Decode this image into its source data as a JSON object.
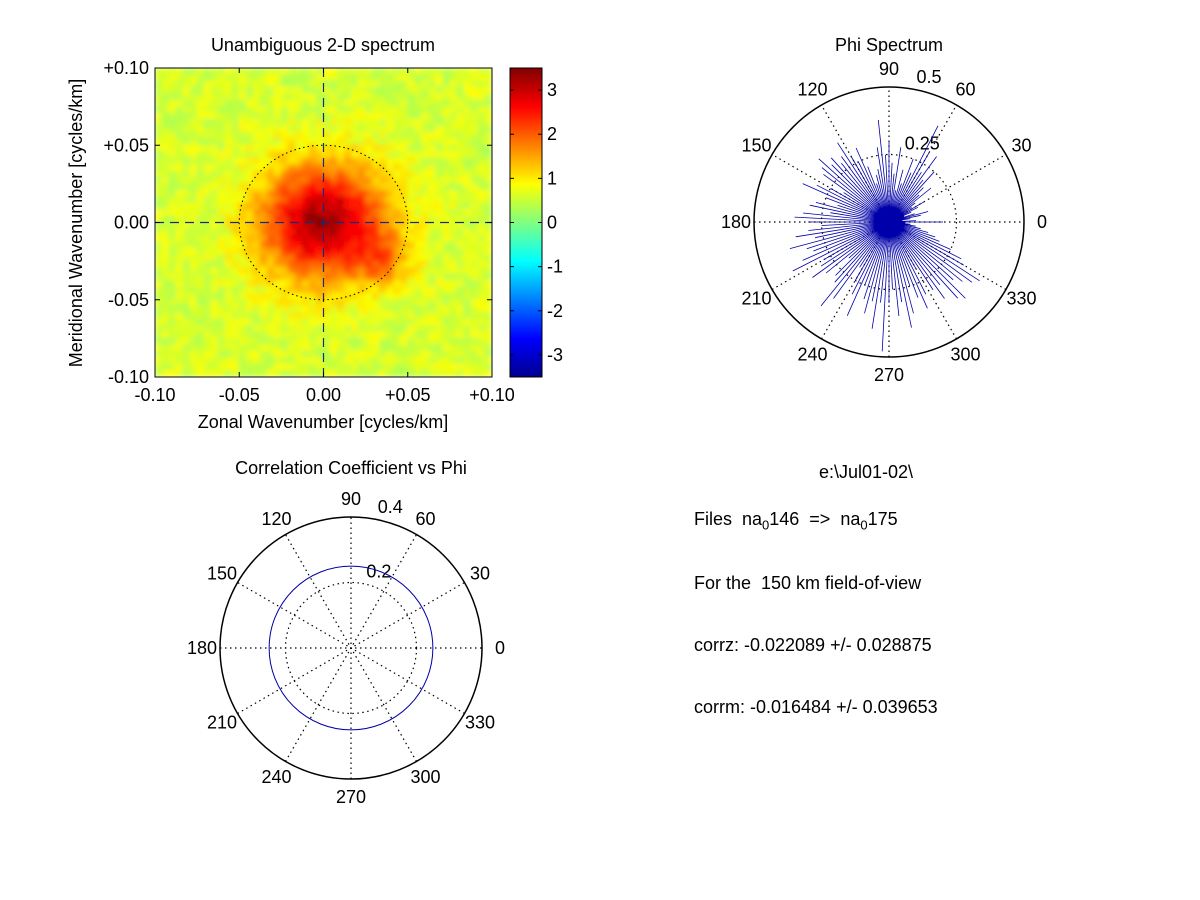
{
  "chart_data": [
    {
      "type": "heatmap",
      "title": "Unambiguous 2-D spectrum",
      "xlabel": "Zonal Wavenumber [cycles/km]",
      "ylabel": "Meridional Wavenumber [cycles/km]",
      "xlim": [
        -0.1,
        0.1
      ],
      "ylim": [
        -0.1,
        0.1
      ],
      "xticks": [
        "-0.10",
        "-0.05",
        "0.00",
        "+0.05",
        "+0.10"
      ],
      "yticks": [
        "-0.10",
        "-0.05",
        "0.00",
        "+0.05",
        "+0.10"
      ],
      "colorbar": {
        "range": [
          -3.5,
          3.5
        ],
        "ticks": [
          "3",
          "2",
          "1",
          "0",
          "-1",
          "-2",
          "-3"
        ],
        "colormap": "jet"
      },
      "peak_value": 3.3,
      "background_value": 0.6,
      "ring_radius": 0.05
    },
    {
      "type": "polar",
      "title": "Phi Spectrum",
      "angle_ticks": [
        "0",
        "30",
        "60",
        "90",
        "120",
        "150",
        "180",
        "210",
        "240",
        "270",
        "300",
        "330"
      ],
      "radial_ticks": [
        "0.25",
        "0.5"
      ],
      "rmax": 0.5,
      "series_color": "#0000aa",
      "series": [
        {
          "values": [
            0.2,
            0.1,
            0.05,
            0.08,
            0.12,
            0.15,
            0.1,
            0.06,
            0.09,
            0.12,
            0.15,
            0.1,
            0.12,
            0.2,
            0.15,
            0.18,
            0.25,
            0.2,
            0.3,
            0.22,
            0.3,
            0.4,
            0.2,
            0.25,
            0.15,
            0.2,
            0.12,
            0.28,
            0.18,
            0.22,
            0.3,
            0.25,
            0.38,
            0.28,
            0.2,
            0.18,
            0.15,
            0.22,
            0.3,
            0.25,
            0.28,
            0.35,
            0.3,
            0.28,
            0.32,
            0.3,
            0.35,
            0.32,
            0.3,
            0.2,
            0.25,
            0.3,
            0.35,
            0.25,
            0.2,
            0.28,
            0.3,
            0.22,
            0.32,
            0.35,
            0.3,
            0.25,
            0.3,
            0.35,
            0.28,
            0.38,
            0.32,
            0.3,
            0.35,
            0.4,
            0.28,
            0.3,
            0.35,
            0.3,
            0.2,
            0.28,
            0.3,
            0.4,
            0.35,
            0.2,
            0.25,
            0.3,
            0.38,
            0.25,
            0.3,
            0.35,
            0.3,
            0.4,
            0.3,
            0.48,
            0.3,
            0.25,
            0.35,
            0.3,
            0.4,
            0.35,
            0.25,
            0.3,
            0.35,
            0.3,
            0.2,
            0.3,
            0.35,
            0.3,
            0.38,
            0.4,
            0.32,
            0.35,
            0.38,
            0.4,
            0.32,
            0.3,
            0.25,
            0.2,
            0.18,
            0.15,
            0.12,
            0.1,
            0.08,
            0.06
          ]
        }
      ]
    },
    {
      "type": "polar",
      "title": "Correlation Coefficient vs Phi",
      "angle_ticks": [
        "0",
        "30",
        "60",
        "90",
        "120",
        "150",
        "180",
        "210",
        "240",
        "270",
        "300",
        "330"
      ],
      "radial_ticks": [
        "0.2",
        "0.4"
      ],
      "rmax": 0.4,
      "series_color": "#0000aa",
      "series": [
        {
          "values": [
            0.25
          ]
        }
      ]
    }
  ],
  "info": {
    "path": "e:\\Jul01-02\\",
    "files_prefix": "Files  na",
    "file_sub1": "0",
    "file_num1": "146  =>  na",
    "file_sub2": "0",
    "file_num2": "175",
    "fov": "For the  150 km field-of-view",
    "corrz": "corrz: -0.022089 +/- 0.028875",
    "corrm": "corrm: -0.016484 +/- 0.039653"
  }
}
